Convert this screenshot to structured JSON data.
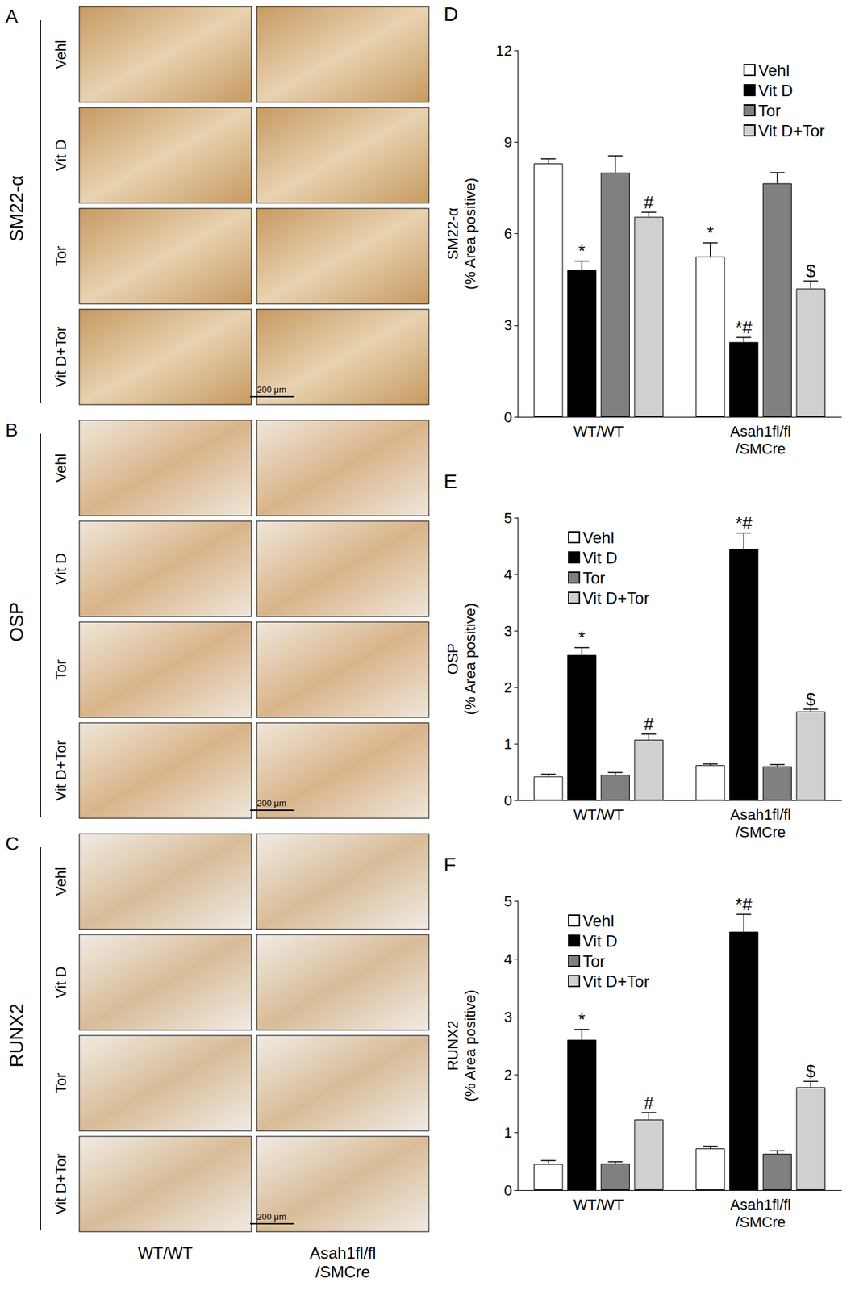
{
  "chart_data": [
    {
      "panel": "D",
      "type": "bar",
      "y_label": "SM22-α\n(% Area positive)",
      "categories": [
        "WT/WT",
        "Asah1fl/fl\n/SMCre"
      ],
      "ylim": [
        0,
        12
      ],
      "yticks": [
        0,
        3,
        6,
        9,
        12
      ],
      "grid": false,
      "legend": "upper right",
      "series": [
        {
          "name": "Vehl",
          "color": "#ffffff",
          "values": [
            8.3,
            5.25
          ],
          "errors": [
            0.15,
            0.45
          ],
          "annotations": [
            null,
            "*"
          ]
        },
        {
          "name": "Vit D",
          "color": "#000000",
          "values": [
            4.8,
            2.45
          ],
          "errors": [
            0.3,
            0.15
          ],
          "annotations": [
            "*",
            "*#"
          ]
        },
        {
          "name": "Tor",
          "color": "#808080",
          "values": [
            8.0,
            7.65
          ],
          "errors": [
            0.55,
            0.35
          ],
          "annotations": [
            null,
            null
          ]
        },
        {
          "name": "Vit D+Tor",
          "color": "#d0d0d0",
          "values": [
            6.55,
            4.2
          ],
          "errors": [
            0.15,
            0.25
          ],
          "annotations": [
            "#",
            "$"
          ]
        }
      ]
    },
    {
      "panel": "E",
      "type": "bar",
      "y_label": "OSP\n(% Area positive)",
      "categories": [
        "WT/WT",
        "Asah1fl/fl\n/SMCre"
      ],
      "ylim": [
        0,
        5
      ],
      "yticks": [
        0,
        1,
        2,
        3,
        4,
        5
      ],
      "grid": false,
      "legend": "upper left",
      "series": [
        {
          "name": "Vehl",
          "color": "#ffffff",
          "values": [
            0.42,
            0.62
          ],
          "errors": [
            0.04,
            0.02
          ],
          "annotations": [
            null,
            null
          ]
        },
        {
          "name": "Vit D",
          "color": "#000000",
          "values": [
            2.57,
            4.45
          ],
          "errors": [
            0.13,
            0.28
          ],
          "annotations": [
            "*",
            "*#"
          ]
        },
        {
          "name": "Tor",
          "color": "#808080",
          "values": [
            0.45,
            0.6
          ],
          "errors": [
            0.04,
            0.03
          ],
          "annotations": [
            null,
            null
          ]
        },
        {
          "name": "Vit D+Tor",
          "color": "#d0d0d0",
          "values": [
            1.07,
            1.57
          ],
          "errors": [
            0.1,
            0.04
          ],
          "annotations": [
            "#",
            "$"
          ]
        }
      ]
    },
    {
      "panel": "F",
      "type": "bar",
      "y_label": "RUNX2\n(% Area positive)",
      "categories": [
        "WT/WT",
        "Asah1fl/fl\n/SMCre"
      ],
      "ylim": [
        0,
        5
      ],
      "yticks": [
        0,
        1,
        2,
        3,
        4,
        5
      ],
      "grid": false,
      "legend": "upper left",
      "series": [
        {
          "name": "Vehl",
          "color": "#ffffff",
          "values": [
            0.45,
            0.72
          ],
          "errors": [
            0.06,
            0.04
          ],
          "annotations": [
            null,
            null
          ]
        },
        {
          "name": "Vit D",
          "color": "#000000",
          "values": [
            2.6,
            4.47
          ],
          "errors": [
            0.18,
            0.3
          ],
          "annotations": [
            "*",
            "*#"
          ]
        },
        {
          "name": "Tor",
          "color": "#808080",
          "values": [
            0.46,
            0.63
          ],
          "errors": [
            0.03,
            0.05
          ],
          "annotations": [
            null,
            null
          ]
        },
        {
          "name": "Vit D+Tor",
          "color": "#d0d0d0",
          "values": [
            1.22,
            1.78
          ],
          "errors": [
            0.12,
            0.1
          ],
          "annotations": [
            "#",
            "$"
          ]
        }
      ]
    }
  ],
  "image_panels": [
    {
      "panel": "A",
      "marker": "SM22-α",
      "rows": [
        "Vehl",
        "Vit D",
        "Tor",
        "Vit D+Tor"
      ],
      "scale_bar": "200 μm"
    },
    {
      "panel": "B",
      "marker": "OSP",
      "rows": [
        "Vehl",
        "Vit D",
        "Tor",
        "Vit D+Tor"
      ],
      "scale_bar": "200 μm"
    },
    {
      "panel": "C",
      "marker": "RUNX2",
      "rows": [
        "Vehl",
        "Vit D",
        "Tor",
        "Vit D+Tor"
      ],
      "scale_bar": "200 μm"
    }
  ],
  "image_columns": [
    "WT/WT",
    "Asah1fl/fl\n/SMCre"
  ]
}
